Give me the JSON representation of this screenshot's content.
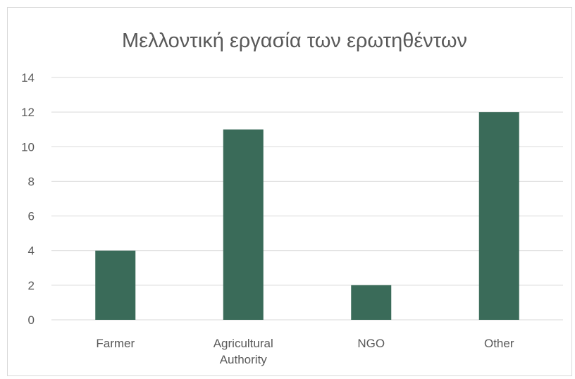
{
  "chart_data": {
    "type": "bar",
    "title": "Μελλοντική εργασία των ερωτηθέντων",
    "categories": [
      [
        "Farmer"
      ],
      [
        "Agricultural",
        "Authority"
      ],
      [
        "NGO"
      ],
      [
        "Other"
      ]
    ],
    "values": [
      4,
      11,
      2,
      12
    ],
    "ylim": [
      0,
      14
    ],
    "yticks": [
      0,
      2,
      4,
      6,
      8,
      10,
      12,
      14
    ],
    "xlabel": "",
    "ylabel": "",
    "grid": true,
    "bar_color": "#3a6b59",
    "gridline_color": "#d9d9d9"
  }
}
